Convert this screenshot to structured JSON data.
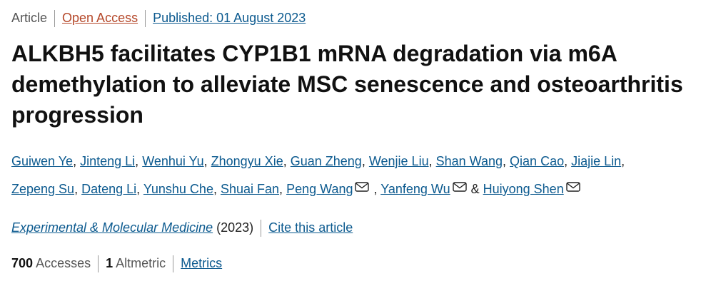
{
  "header": {
    "type": "Article",
    "access": "Open Access",
    "published": "Published: 01 August 2023"
  },
  "title": "ALKBH5 facilitates CYP1B1 mRNA degradation via m6A demethylation to alleviate MSC senescence and osteoarthritis progression",
  "authors": [
    {
      "name": "Guiwen Ye",
      "suffix": ","
    },
    {
      "name": "Jinteng Li",
      "suffix": ","
    },
    {
      "name": "Wenhui Yu",
      "suffix": ","
    },
    {
      "name": "Zhongyu Xie",
      "suffix": ","
    },
    {
      "name": "Guan Zheng",
      "suffix": ","
    },
    {
      "name": "Wenjie Liu",
      "suffix": ","
    },
    {
      "name": "Shan Wang",
      "suffix": ","
    },
    {
      "name": "Qian Cao",
      "suffix": ","
    },
    {
      "name": "Jiajie Lin",
      "suffix": ","
    },
    {
      "name": "Zepeng Su",
      "suffix": ","
    },
    {
      "name": "Dateng Li",
      "suffix": ","
    },
    {
      "name": "Yunshu Che",
      "suffix": ","
    },
    {
      "name": "Shuai Fan",
      "suffix": ","
    },
    {
      "name": "Peng Wang",
      "email": true,
      "suffix": ","
    },
    {
      "name": "Yanfeng Wu",
      "email": true,
      "suffix": "&"
    },
    {
      "name": "Huiyong Shen",
      "email": true
    }
  ],
  "citation": {
    "journal": "Experimental & Molecular Medicine",
    "year": "(2023)",
    "cite": "Cite this article"
  },
  "metrics": {
    "accesses": 700,
    "accesses_label": "Accesses",
    "altmetric": 1,
    "altmetric_label": "Altmetric",
    "link": "Metrics"
  }
}
